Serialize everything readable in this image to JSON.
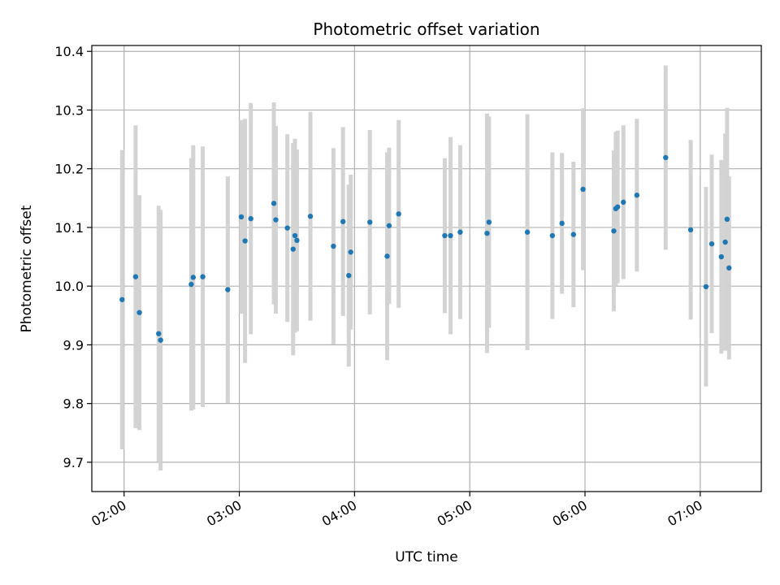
{
  "chart_data": {
    "type": "scatter",
    "title": "Photometric offset variation",
    "xlabel": "UTC time",
    "ylabel": "Photometric offset",
    "x_unit": "hours (UTC)",
    "xlim": [
      1.72,
      7.53
    ],
    "ylim": [
      9.65,
      10.41
    ],
    "x_ticks": [
      2,
      3,
      4,
      5,
      6,
      7
    ],
    "x_tick_labels": [
      "02:00",
      "03:00",
      "04:00",
      "05:00",
      "06:00",
      "07:00"
    ],
    "y_ticks": [
      9.7,
      9.8,
      9.9,
      10.0,
      10.1,
      10.2,
      10.3,
      10.4
    ],
    "y_tick_labels": [
      "9.7",
      "9.8",
      "9.9",
      "10.0",
      "10.1",
      "10.2",
      "10.3",
      "10.4"
    ],
    "grid": true,
    "legend": "none",
    "colors": {
      "point": "#1f77b4",
      "errorbar": "#d3d3d3",
      "grid": "#b0b0b0",
      "axis": "#000000"
    },
    "points": [
      {
        "x": 1.983,
        "y": 9.977,
        "err": 0.255
      },
      {
        "x": 2.1,
        "y": 10.016,
        "err": 0.258
      },
      {
        "x": 2.133,
        "y": 9.955,
        "err": 0.2
      },
      {
        "x": 2.3,
        "y": 9.919,
        "err": 0.218
      },
      {
        "x": 2.317,
        "y": 9.908,
        "err": 0.222
      },
      {
        "x": 2.583,
        "y": 10.003,
        "err": 0.215
      },
      {
        "x": 2.6,
        "y": 10.015,
        "err": 0.225
      },
      {
        "x": 2.683,
        "y": 10.016,
        "err": 0.222
      },
      {
        "x": 2.9,
        "y": 9.994,
        "err": 0.193
      },
      {
        "x": 3.017,
        "y": 10.118,
        "err": 0.165
      },
      {
        "x": 3.05,
        "y": 10.077,
        "err": 0.208
      },
      {
        "x": 3.1,
        "y": 10.115,
        "err": 0.197
      },
      {
        "x": 3.3,
        "y": 10.141,
        "err": 0.172
      },
      {
        "x": 3.317,
        "y": 10.113,
        "err": 0.16
      },
      {
        "x": 3.417,
        "y": 10.099,
        "err": 0.16
      },
      {
        "x": 3.467,
        "y": 10.063,
        "err": 0.181
      },
      {
        "x": 3.483,
        "y": 10.086,
        "err": 0.165
      },
      {
        "x": 3.5,
        "y": 10.078,
        "err": 0.155
      },
      {
        "x": 3.617,
        "y": 10.119,
        "err": 0.178
      },
      {
        "x": 3.817,
        "y": 10.068,
        "err": 0.167
      },
      {
        "x": 3.9,
        "y": 10.11,
        "err": 0.161
      },
      {
        "x": 3.95,
        "y": 10.018,
        "err": 0.155
      },
      {
        "x": 3.967,
        "y": 10.058,
        "err": 0.132
      },
      {
        "x": 4.133,
        "y": 10.109,
        "err": 0.157
      },
      {
        "x": 4.283,
        "y": 10.051,
        "err": 0.177
      },
      {
        "x": 4.3,
        "y": 10.103,
        "err": 0.133
      },
      {
        "x": 4.383,
        "y": 10.123,
        "err": 0.16
      },
      {
        "x": 4.783,
        "y": 10.086,
        "err": 0.132
      },
      {
        "x": 4.833,
        "y": 10.086,
        "err": 0.168
      },
      {
        "x": 4.917,
        "y": 10.092,
        "err": 0.148
      },
      {
        "x": 5.15,
        "y": 10.09,
        "err": 0.204
      },
      {
        "x": 5.167,
        "y": 10.109,
        "err": 0.18
      },
      {
        "x": 5.5,
        "y": 10.092,
        "err": 0.201
      },
      {
        "x": 5.717,
        "y": 10.086,
        "err": 0.142
      },
      {
        "x": 5.8,
        "y": 10.107,
        "err": 0.12
      },
      {
        "x": 5.9,
        "y": 10.088,
        "err": 0.124
      },
      {
        "x": 5.983,
        "y": 10.165,
        "err": 0.138
      },
      {
        "x": 6.25,
        "y": 10.094,
        "err": 0.137
      },
      {
        "x": 6.267,
        "y": 10.132,
        "err": 0.131
      },
      {
        "x": 6.283,
        "y": 10.135,
        "err": 0.13
      },
      {
        "x": 6.333,
        "y": 10.143,
        "err": 0.131
      },
      {
        "x": 6.45,
        "y": 10.155,
        "err": 0.13
      },
      {
        "x": 6.7,
        "y": 10.219,
        "err": 0.157
      },
      {
        "x": 6.917,
        "y": 10.096,
        "err": 0.153
      },
      {
        "x": 7.05,
        "y": 9.999,
        "err": 0.17
      },
      {
        "x": 7.1,
        "y": 10.072,
        "err": 0.152
      },
      {
        "x": 7.183,
        "y": 10.05,
        "err": 0.165
      },
      {
        "x": 7.217,
        "y": 10.075,
        "err": 0.185
      },
      {
        "x": 7.233,
        "y": 10.114,
        "err": 0.19
      },
      {
        "x": 7.25,
        "y": 10.031,
        "err": 0.156
      }
    ]
  }
}
